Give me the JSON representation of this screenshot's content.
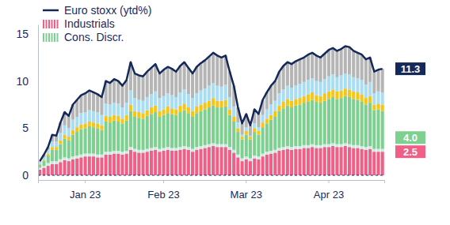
{
  "chart_data": {
    "type": "bar",
    "stacked": true,
    "legend": "top-left",
    "ylim": [
      -0.5,
      16
    ],
    "yticks": [
      0,
      5,
      10,
      15
    ],
    "categories": [
      null,
      null,
      null,
      null,
      null,
      null,
      null,
      null,
      null,
      null,
      null,
      "Jan 23",
      null,
      null,
      null,
      null,
      null,
      null,
      null,
      null,
      null,
      null,
      null,
      null,
      null,
      null,
      null,
      null,
      null,
      null,
      "Feb 23",
      null,
      null,
      null,
      null,
      null,
      null,
      null,
      null,
      null,
      null,
      null,
      null,
      null,
      null,
      null,
      null,
      null,
      null,
      null,
      "Mar 23",
      null,
      null,
      null,
      null,
      null,
      null,
      null,
      null,
      null,
      null,
      null,
      null,
      null,
      null,
      null,
      null,
      null,
      null,
      null,
      "Apr 23",
      null,
      null,
      null,
      null,
      null,
      null,
      null,
      null,
      null,
      null,
      null,
      null,
      null
    ],
    "series": [
      {
        "name": "Euro stoxx (ytd%)",
        "type": "line",
        "color": "#14285a",
        "values": [
          1.5,
          2.2,
          3.0,
          4.3,
          4.2,
          5.6,
          6.7,
          6.3,
          7.5,
          8.0,
          8.5,
          8.7,
          9.0,
          8.8,
          8.6,
          8.3,
          10.0,
          9.8,
          10.2,
          10.0,
          9.5,
          10.1,
          12.0,
          10.8,
          10.6,
          10.5,
          11.0,
          11.4,
          11.8,
          10.8,
          11.2,
          11.5,
          11.3,
          11.0,
          11.6,
          12.0,
          11.4,
          10.8,
          11.5,
          11.9,
          12.2,
          12.6,
          13.0,
          12.7,
          12.5,
          12.7,
          11.0,
          9.5,
          7.2,
          5.5,
          6.5,
          5.3,
          7.0,
          6.5,
          8.0,
          8.8,
          9.5,
          10.0,
          11.0,
          11.6,
          12.0,
          11.8,
          12.1,
          12.3,
          12.5,
          12.8,
          13.0,
          12.7,
          12.5,
          12.9,
          13.3,
          13.5,
          13.2,
          13.4,
          13.7,
          13.6,
          13.2,
          13.0,
          12.8,
          12.3,
          12.5,
          11.0,
          11.2,
          11.3
        ]
      },
      {
        "name": "Industrials",
        "type": "bar",
        "color": "#ef5f86",
        "values": [
          0.6,
          0.8,
          1.0,
          1.2,
          1.2,
          1.4,
          1.6,
          1.5,
          1.7,
          1.8,
          1.9,
          2.0,
          2.0,
          2.0,
          1.9,
          1.9,
          2.2,
          2.2,
          2.3,
          2.3,
          2.2,
          2.3,
          2.7,
          2.5,
          2.4,
          2.4,
          2.5,
          2.6,
          2.7,
          2.5,
          2.6,
          2.7,
          2.6,
          2.6,
          2.7,
          2.8,
          2.7,
          2.5,
          2.7,
          2.8,
          2.9,
          3.0,
          3.1,
          3.0,
          3.0,
          3.0,
          2.7,
          2.4,
          1.9,
          1.5,
          1.7,
          1.5,
          1.8,
          1.7,
          2.0,
          2.2,
          2.3,
          2.4,
          2.6,
          2.7,
          2.8,
          2.7,
          2.8,
          2.8,
          2.9,
          2.9,
          3.0,
          2.9,
          2.9,
          3.0,
          3.0,
          3.1,
          3.0,
          3.0,
          3.1,
          3.0,
          2.9,
          2.9,
          2.8,
          2.7,
          2.8,
          2.5,
          2.5,
          2.5
        ]
      },
      {
        "type": "bar",
        "color": "#cfe9e2",
        "values": [
          0.2,
          0.2,
          0.3,
          0.3,
          0.3,
          0.3,
          0.3,
          0.3,
          0.3,
          0.3,
          0.3,
          0.3,
          0.3,
          0.3,
          0.3,
          0.3,
          0.3,
          0.3,
          0.3,
          0.3,
          0.3,
          0.3,
          0.3,
          0.3,
          0.3,
          0.3,
          0.3,
          0.3,
          0.3,
          0.3,
          0.3,
          0.3,
          0.3,
          0.3,
          0.3,
          0.3,
          0.3,
          0.3,
          0.3,
          0.3,
          0.3,
          0.3,
          0.3,
          0.3,
          0.3,
          0.3,
          0.3,
          0.3,
          0.3,
          0.3,
          0.3,
          0.3,
          0.3,
          0.3,
          0.3,
          0.3,
          0.3,
          0.3,
          0.3,
          0.3,
          0.3,
          0.3,
          0.3,
          0.3,
          0.3,
          0.3,
          0.3,
          0.3,
          0.3,
          0.3,
          0.3,
          0.3,
          0.3,
          0.3,
          0.3,
          0.3,
          0.3,
          0.3,
          0.3,
          0.3,
          0.3,
          0.3,
          0.3,
          0.3
        ]
      },
      {
        "name": "Cons. Discr.",
        "type": "bar",
        "color": "#7dd08f",
        "values": [
          0.3,
          0.5,
          0.8,
          1.2,
          1.2,
          1.6,
          2.0,
          1.9,
          2.3,
          2.5,
          2.7,
          2.7,
          2.9,
          2.8,
          2.8,
          2.6,
          3.2,
          3.1,
          3.2,
          3.1,
          3.0,
          3.2,
          3.8,
          3.4,
          3.4,
          3.3,
          3.5,
          3.6,
          3.7,
          3.4,
          3.5,
          3.6,
          3.6,
          3.5,
          3.7,
          3.8,
          3.6,
          3.4,
          3.6,
          3.7,
          3.8,
          3.9,
          4.0,
          3.9,
          3.9,
          4.0,
          3.4,
          3.0,
          2.4,
          2.0,
          2.3,
          2.0,
          2.5,
          2.3,
          2.8,
          3.0,
          3.3,
          3.5,
          3.9,
          4.1,
          4.3,
          4.2,
          4.3,
          4.4,
          4.5,
          4.6,
          4.7,
          4.6,
          4.5,
          4.6,
          4.8,
          4.9,
          4.8,
          4.9,
          5.0,
          5.0,
          4.9,
          4.8,
          4.7,
          4.5,
          4.6,
          4.1,
          4.2,
          4.0
        ]
      },
      {
        "type": "bar",
        "color": "#f5c518",
        "values": [
          0.1,
          0.1,
          0.2,
          0.3,
          0.3,
          0.4,
          0.4,
          0.4,
          0.5,
          0.5,
          0.5,
          0.5,
          0.5,
          0.5,
          0.5,
          0.5,
          0.6,
          0.6,
          0.6,
          0.6,
          0.5,
          0.6,
          0.7,
          0.6,
          0.6,
          0.6,
          0.6,
          0.7,
          0.7,
          0.6,
          0.6,
          0.7,
          0.6,
          0.6,
          0.7,
          0.7,
          0.6,
          0.6,
          0.7,
          0.7,
          0.7,
          0.7,
          0.8,
          0.7,
          0.7,
          0.7,
          0.6,
          0.5,
          0.4,
          0.3,
          0.4,
          0.3,
          0.4,
          0.4,
          0.5,
          0.5,
          0.5,
          0.6,
          0.6,
          0.7,
          0.7,
          0.7,
          0.7,
          0.7,
          0.7,
          0.8,
          0.8,
          0.7,
          0.7,
          0.8,
          0.8,
          0.8,
          0.8,
          0.8,
          0.8,
          0.8,
          0.8,
          0.8,
          0.8,
          0.7,
          0.7,
          0.6,
          0.6,
          0.7
        ]
      },
      {
        "type": "bar",
        "color": "#a9ddf3",
        "values": [
          0.2,
          0.3,
          0.4,
          0.6,
          0.6,
          0.8,
          1.0,
          0.9,
          1.1,
          1.1,
          1.2,
          1.2,
          1.2,
          1.2,
          1.2,
          1.1,
          1.3,
          1.3,
          1.3,
          1.3,
          1.2,
          1.3,
          1.5,
          1.4,
          1.3,
          1.3,
          1.4,
          1.4,
          1.5,
          1.4,
          1.4,
          1.4,
          1.4,
          1.3,
          1.4,
          1.5,
          1.4,
          1.4,
          1.4,
          1.5,
          1.5,
          1.6,
          1.6,
          1.6,
          1.5,
          1.6,
          1.3,
          1.1,
          0.6,
          0.2,
          0.4,
          0.1,
          0.5,
          0.4,
          0.8,
          1.0,
          1.1,
          1.1,
          1.3,
          1.3,
          1.4,
          1.4,
          1.4,
          1.5,
          1.5,
          1.5,
          1.5,
          1.5,
          1.5,
          1.5,
          1.6,
          1.6,
          1.5,
          1.6,
          1.6,
          1.6,
          1.5,
          1.5,
          1.5,
          1.4,
          1.5,
          1.2,
          1.3,
          1.3
        ]
      },
      {
        "type": "bar",
        "color": "#b5b5b5",
        "values": [
          0.1,
          0.3,
          0.3,
          0.7,
          0.6,
          1.1,
          1.4,
          1.3,
          1.6,
          1.8,
          1.9,
          2.0,
          2.1,
          2.0,
          1.9,
          1.9,
          2.4,
          2.3,
          2.5,
          2.4,
          2.3,
          2.4,
          3.0,
          2.6,
          2.6,
          2.6,
          2.7,
          2.8,
          2.9,
          2.6,
          2.8,
          2.8,
          2.8,
          2.7,
          2.8,
          2.9,
          2.8,
          2.6,
          2.8,
          2.9,
          3.0,
          3.1,
          3.2,
          3.2,
          3.1,
          3.1,
          2.7,
          2.2,
          1.6,
          1.2,
          1.4,
          1.1,
          1.5,
          1.4,
          1.6,
          1.8,
          2.0,
          2.1,
          2.3,
          2.5,
          2.5,
          2.5,
          2.6,
          2.6,
          2.6,
          2.7,
          2.7,
          2.7,
          2.6,
          2.7,
          2.8,
          2.8,
          2.8,
          2.8,
          2.9,
          2.9,
          2.8,
          2.7,
          2.7,
          2.7,
          2.6,
          2.3,
          2.3,
          2.5
        ]
      }
    ],
    "annotations": [
      {
        "text": "11.3",
        "value": 11.3,
        "color": "#14285a"
      },
      {
        "text": "4.0",
        "value": 4.0,
        "color": "#7dd08f"
      },
      {
        "text": "2.5",
        "value": 2.5,
        "color": "#ef5f86"
      }
    ]
  }
}
